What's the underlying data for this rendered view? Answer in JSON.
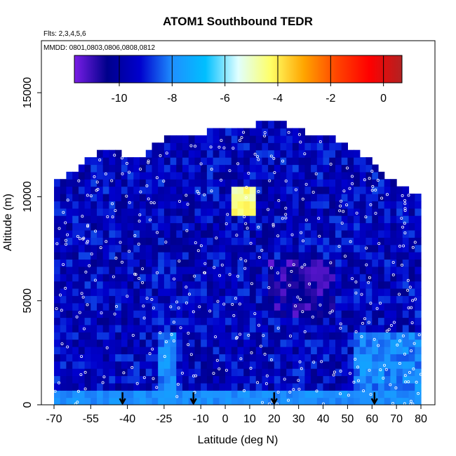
{
  "chart_data": {
    "type": "heatmap",
    "title": "ATOM1 Southbound TEDR",
    "flights_label": "Flts: 2,3,4,5,6",
    "dates_label": "MMDD: 0801,0803,0806,0808,0812",
    "xlabel": "Latitude (deg N)",
    "ylabel": "Altitude (m)",
    "xlim": [
      -70,
      85
    ],
    "ylim": [
      0,
      17500
    ],
    "x_ticks": [
      -70,
      -55,
      -40,
      -25,
      -10,
      0,
      10,
      20,
      30,
      40,
      50,
      60,
      70,
      80
    ],
    "y_ticks": [
      0,
      5000,
      10000,
      15000
    ],
    "colorbar": {
      "range": [
        -11.7,
        0.7
      ],
      "ticks": [
        -10,
        -8,
        -6,
        -4,
        -2,
        0
      ],
      "colors": [
        "#7a1ee6",
        "#00008b",
        "#0000cd",
        "#1e90ff",
        "#00bfff",
        "#e0ffff",
        "#ffff66",
        "#ffa500",
        "#ff4500",
        "#ff0000",
        "#b22222"
      ]
    },
    "profile_markers_lat": [
      -42,
      -13,
      20,
      61
    ],
    "grid": false,
    "legend": "colorbar at top inside plot"
  }
}
